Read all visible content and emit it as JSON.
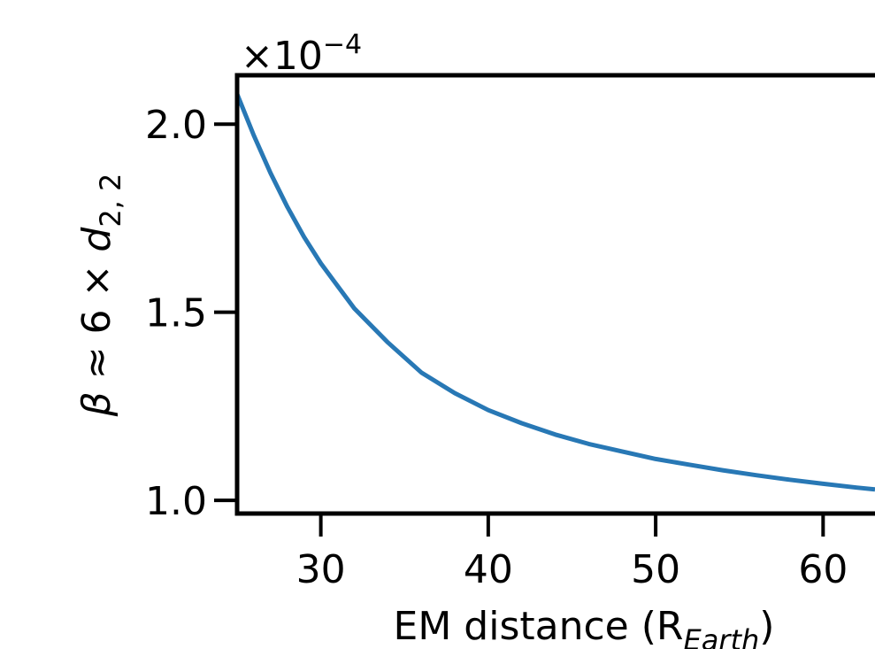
{
  "chart_data": {
    "type": "line",
    "xlabel": {
      "main": "EM distance (R",
      "subscript": "Earth",
      "close": ")"
    },
    "ylabel": {
      "beta": "β",
      "approx": " ≈ 6 × ",
      "d": "d",
      "subscript": "2, 2"
    },
    "offset_text": {
      "times": "×10",
      "exponent": "−4"
    },
    "xlim": [
      25,
      63.1
    ],
    "ylim": [
      0.965,
      2.13
    ],
    "xticks": [
      {
        "value": 30,
        "label": "30"
      },
      {
        "value": 40,
        "label": "40"
      },
      {
        "value": 50,
        "label": "50"
      },
      {
        "value": 60,
        "label": "60"
      }
    ],
    "yticks": [
      {
        "value": 1.0,
        "label": "1.0"
      },
      {
        "value": 1.5,
        "label": "1.5"
      },
      {
        "value": 2.0,
        "label": "2.0"
      }
    ],
    "series": [
      {
        "color": "#2878b5",
        "x": [
          25,
          26,
          27,
          28,
          29,
          30,
          32,
          34,
          36,
          38,
          40,
          42,
          44,
          46,
          48,
          50,
          52,
          54,
          56,
          58,
          60,
          62,
          63.1
        ],
        "y": [
          2.08,
          1.97,
          1.87,
          1.78,
          1.7,
          1.63,
          1.51,
          1.42,
          1.34,
          1.285,
          1.24,
          1.205,
          1.175,
          1.15,
          1.13,
          1.11,
          1.095,
          1.08,
          1.067,
          1.055,
          1.044,
          1.034,
          1.029
        ]
      }
    ],
    "grid": false
  }
}
